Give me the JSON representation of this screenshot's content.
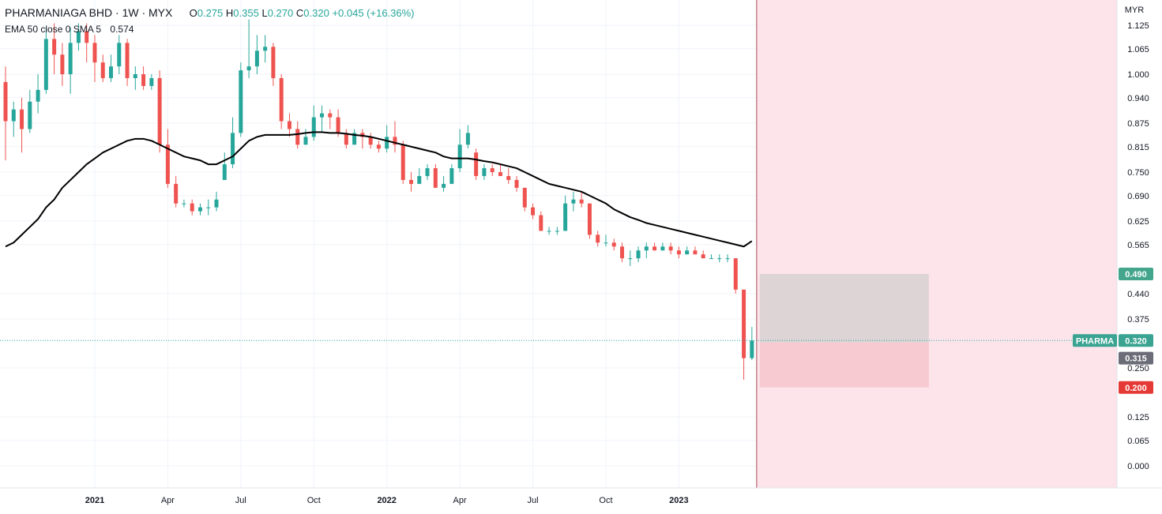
{
  "legend": {
    "symbol": "PHARMANIAGA BHD · 1W · MYX",
    "ohlc": [
      {
        "k": "O",
        "v": "0.275"
      },
      {
        "k": "H",
        "v": "0.355"
      },
      {
        "k": "L",
        "v": "0.270"
      },
      {
        "k": "C",
        "v": "0.320"
      }
    ],
    "change": "+0.045 (+16.36%)",
    "indicator": "EMA 50 close 0 SMA 5",
    "indicator_value": "0.574"
  },
  "colors": {
    "up": "#26a69a",
    "down": "#ef5350",
    "ema": "#000000",
    "shade": "#fce4ea",
    "profit_zone": "#d9d2d3",
    "stop_zone": "#f5c7cd",
    "divider": "#b2646f",
    "grid": "#f0f3fa"
  },
  "badges": {
    "target": "0.490",
    "ticker": "PHARMA",
    "last": "0.320",
    "entry": "0.315",
    "stop": "0.200"
  },
  "chart_data": {
    "type": "candlestick",
    "title": "PHARMANIAGA BHD · 1W · MYX",
    "currency_label": "MYR",
    "y_ticks": [
      "1.125",
      "1.065",
      "1.000",
      "0.940",
      "0.875",
      "0.815",
      "0.750",
      "0.690",
      "0.625",
      "0.565",
      "0.440",
      "0.375",
      "0.250",
      "0.125",
      "0.065",
      "0.000"
    ],
    "x_ticks": [
      "2021",
      "Apr",
      "Jul",
      "Oct",
      "2022",
      "Apr",
      "Jul",
      "Oct",
      "2023"
    ],
    "x_tick_index": [
      11,
      20,
      29,
      38,
      47,
      56,
      65,
      74,
      83
    ],
    "candles": [
      [
        0.98,
        0.88,
        1.02,
        0.78
      ],
      [
        0.88,
        0.91,
        0.93,
        0.84
      ],
      [
        0.91,
        0.86,
        0.94,
        0.8
      ],
      [
        0.86,
        0.93,
        0.96,
        0.85
      ],
      [
        0.93,
        0.96,
        1.0,
        0.9
      ],
      [
        0.96,
        1.09,
        1.12,
        0.95
      ],
      [
        1.09,
        1.05,
        1.13,
        1.0
      ],
      [
        1.05,
        1.0,
        1.08,
        0.97
      ],
      [
        1.0,
        1.08,
        1.12,
        0.95
      ],
      [
        1.08,
        1.11,
        1.13,
        1.06
      ],
      [
        1.11,
        1.08,
        1.13,
        1.03
      ],
      [
        1.08,
        1.03,
        1.1,
        0.98
      ],
      [
        1.03,
        0.99,
        1.05,
        0.98
      ],
      [
        0.99,
        1.02,
        1.05,
        0.98
      ],
      [
        1.02,
        1.08,
        1.1,
        1.0
      ],
      [
        1.08,
        0.99,
        1.09,
        0.97
      ],
      [
        0.99,
        1.0,
        1.02,
        0.96
      ],
      [
        1.0,
        0.97,
        1.02,
        0.96
      ],
      [
        0.97,
        0.99,
        1.0,
        0.96
      ],
      [
        0.99,
        0.82,
        1.01,
        0.8
      ],
      [
        0.82,
        0.72,
        0.86,
        0.71
      ],
      [
        0.72,
        0.67,
        0.74,
        0.66
      ],
      [
        0.67,
        0.67,
        0.68,
        0.66
      ],
      [
        0.67,
        0.65,
        0.68,
        0.64
      ],
      [
        0.65,
        0.66,
        0.67,
        0.64
      ],
      [
        0.66,
        0.66,
        0.68,
        0.64
      ],
      [
        0.66,
        0.68,
        0.7,
        0.65
      ],
      [
        0.73,
        0.77,
        0.8,
        0.74
      ],
      [
        0.77,
        0.85,
        0.89,
        0.76
      ],
      [
        0.85,
        1.01,
        1.03,
        0.84
      ],
      [
        1.01,
        1.02,
        1.14,
        0.99
      ],
      [
        1.02,
        1.06,
        1.1,
        1.0
      ],
      [
        1.06,
        1.07,
        1.1,
        1.03
      ],
      [
        1.07,
        0.99,
        1.08,
        0.97
      ],
      [
        0.99,
        0.88,
        1.0,
        0.86
      ],
      [
        0.88,
        0.86,
        0.9,
        0.84
      ],
      [
        0.86,
        0.82,
        0.88,
        0.81
      ],
      [
        0.82,
        0.84,
        0.86,
        0.82
      ],
      [
        0.84,
        0.89,
        0.92,
        0.83
      ],
      [
        0.89,
        0.9,
        0.92,
        0.85
      ],
      [
        0.9,
        0.89,
        0.91,
        0.86
      ],
      [
        0.89,
        0.85,
        0.91,
        0.84
      ],
      [
        0.85,
        0.82,
        0.86,
        0.81
      ],
      [
        0.82,
        0.85,
        0.86,
        0.82
      ],
      [
        0.85,
        0.84,
        0.86,
        0.81
      ],
      [
        0.84,
        0.82,
        0.85,
        0.81
      ],
      [
        0.82,
        0.81,
        0.83,
        0.8
      ],
      [
        0.81,
        0.84,
        0.87,
        0.8
      ],
      [
        0.84,
        0.82,
        0.88,
        0.8
      ],
      [
        0.82,
        0.73,
        0.83,
        0.72
      ],
      [
        0.73,
        0.72,
        0.75,
        0.7
      ],
      [
        0.72,
        0.74,
        0.76,
        0.72
      ],
      [
        0.74,
        0.76,
        0.77,
        0.73
      ],
      [
        0.76,
        0.71,
        0.77,
        0.71
      ],
      [
        0.71,
        0.72,
        0.74,
        0.7
      ],
      [
        0.72,
        0.76,
        0.77,
        0.72
      ],
      [
        0.76,
        0.82,
        0.86,
        0.75
      ],
      [
        0.82,
        0.85,
        0.87,
        0.81
      ],
      [
        0.8,
        0.74,
        0.81,
        0.73
      ],
      [
        0.74,
        0.76,
        0.77,
        0.73
      ],
      [
        0.76,
        0.75,
        0.77,
        0.74
      ],
      [
        0.75,
        0.74,
        0.77,
        0.74
      ],
      [
        0.74,
        0.73,
        0.76,
        0.72
      ],
      [
        0.73,
        0.71,
        0.74,
        0.7
      ],
      [
        0.71,
        0.66,
        0.71,
        0.65
      ],
      [
        0.66,
        0.64,
        0.67,
        0.63
      ],
      [
        0.64,
        0.6,
        0.65,
        0.6
      ],
      [
        0.6,
        0.6,
        0.61,
        0.59
      ],
      [
        0.6,
        0.6,
        0.61,
        0.59
      ],
      [
        0.6,
        0.67,
        0.69,
        0.6
      ],
      [
        0.67,
        0.68,
        0.7,
        0.65
      ],
      [
        0.68,
        0.67,
        0.7,
        0.66
      ],
      [
        0.67,
        0.59,
        0.67,
        0.58
      ],
      [
        0.59,
        0.57,
        0.6,
        0.56
      ],
      [
        0.57,
        0.57,
        0.59,
        0.56
      ],
      [
        0.57,
        0.56,
        0.58,
        0.55
      ],
      [
        0.56,
        0.53,
        0.57,
        0.52
      ],
      [
        0.53,
        0.53,
        0.55,
        0.51
      ],
      [
        0.53,
        0.55,
        0.56,
        0.52
      ],
      [
        0.55,
        0.56,
        0.57,
        0.53
      ],
      [
        0.56,
        0.55,
        0.57,
        0.55
      ],
      [
        0.55,
        0.56,
        0.57,
        0.55
      ],
      [
        0.56,
        0.55,
        0.57,
        0.54
      ],
      [
        0.55,
        0.54,
        0.56,
        0.53
      ],
      [
        0.54,
        0.55,
        0.56,
        0.54
      ],
      [
        0.55,
        0.54,
        0.56,
        0.54
      ],
      [
        0.54,
        0.53,
        0.55,
        0.53
      ],
      [
        0.53,
        0.53,
        0.54,
        0.53
      ],
      [
        0.53,
        0.53,
        0.54,
        0.52
      ],
      [
        0.53,
        0.53,
        0.54,
        0.52
      ],
      [
        0.53,
        0.45,
        0.53,
        0.44
      ],
      [
        0.45,
        0.275,
        0.45,
        0.22
      ],
      [
        0.275,
        0.32,
        0.355,
        0.27
      ]
    ],
    "ema50": [
      0.56,
      0.57,
      0.59,
      0.61,
      0.63,
      0.66,
      0.68,
      0.71,
      0.73,
      0.75,
      0.77,
      0.785,
      0.8,
      0.81,
      0.82,
      0.83,
      0.835,
      0.835,
      0.83,
      0.82,
      0.81,
      0.8,
      0.79,
      0.785,
      0.78,
      0.77,
      0.77,
      0.78,
      0.79,
      0.81,
      0.83,
      0.84,
      0.845,
      0.845,
      0.845,
      0.845,
      0.847,
      0.85,
      0.852,
      0.852,
      0.85,
      0.85,
      0.848,
      0.845,
      0.843,
      0.84,
      0.835,
      0.83,
      0.825,
      0.82,
      0.815,
      0.81,
      0.805,
      0.8,
      0.79,
      0.785,
      0.785,
      0.785,
      0.782,
      0.778,
      0.775,
      0.77,
      0.765,
      0.76,
      0.75,
      0.74,
      0.73,
      0.72,
      0.715,
      0.71,
      0.705,
      0.7,
      0.69,
      0.68,
      0.67,
      0.655,
      0.645,
      0.635,
      0.628,
      0.62,
      0.615,
      0.61,
      0.605,
      0.6,
      0.595,
      0.59,
      0.585,
      0.58,
      0.575,
      0.57,
      0.565,
      0.56,
      0.574
    ],
    "ylim": [
      -0.05,
      1.18
    ],
    "last_price": 0.32,
    "position": {
      "target": 0.49,
      "entry": 0.315,
      "stop": 0.2
    }
  }
}
